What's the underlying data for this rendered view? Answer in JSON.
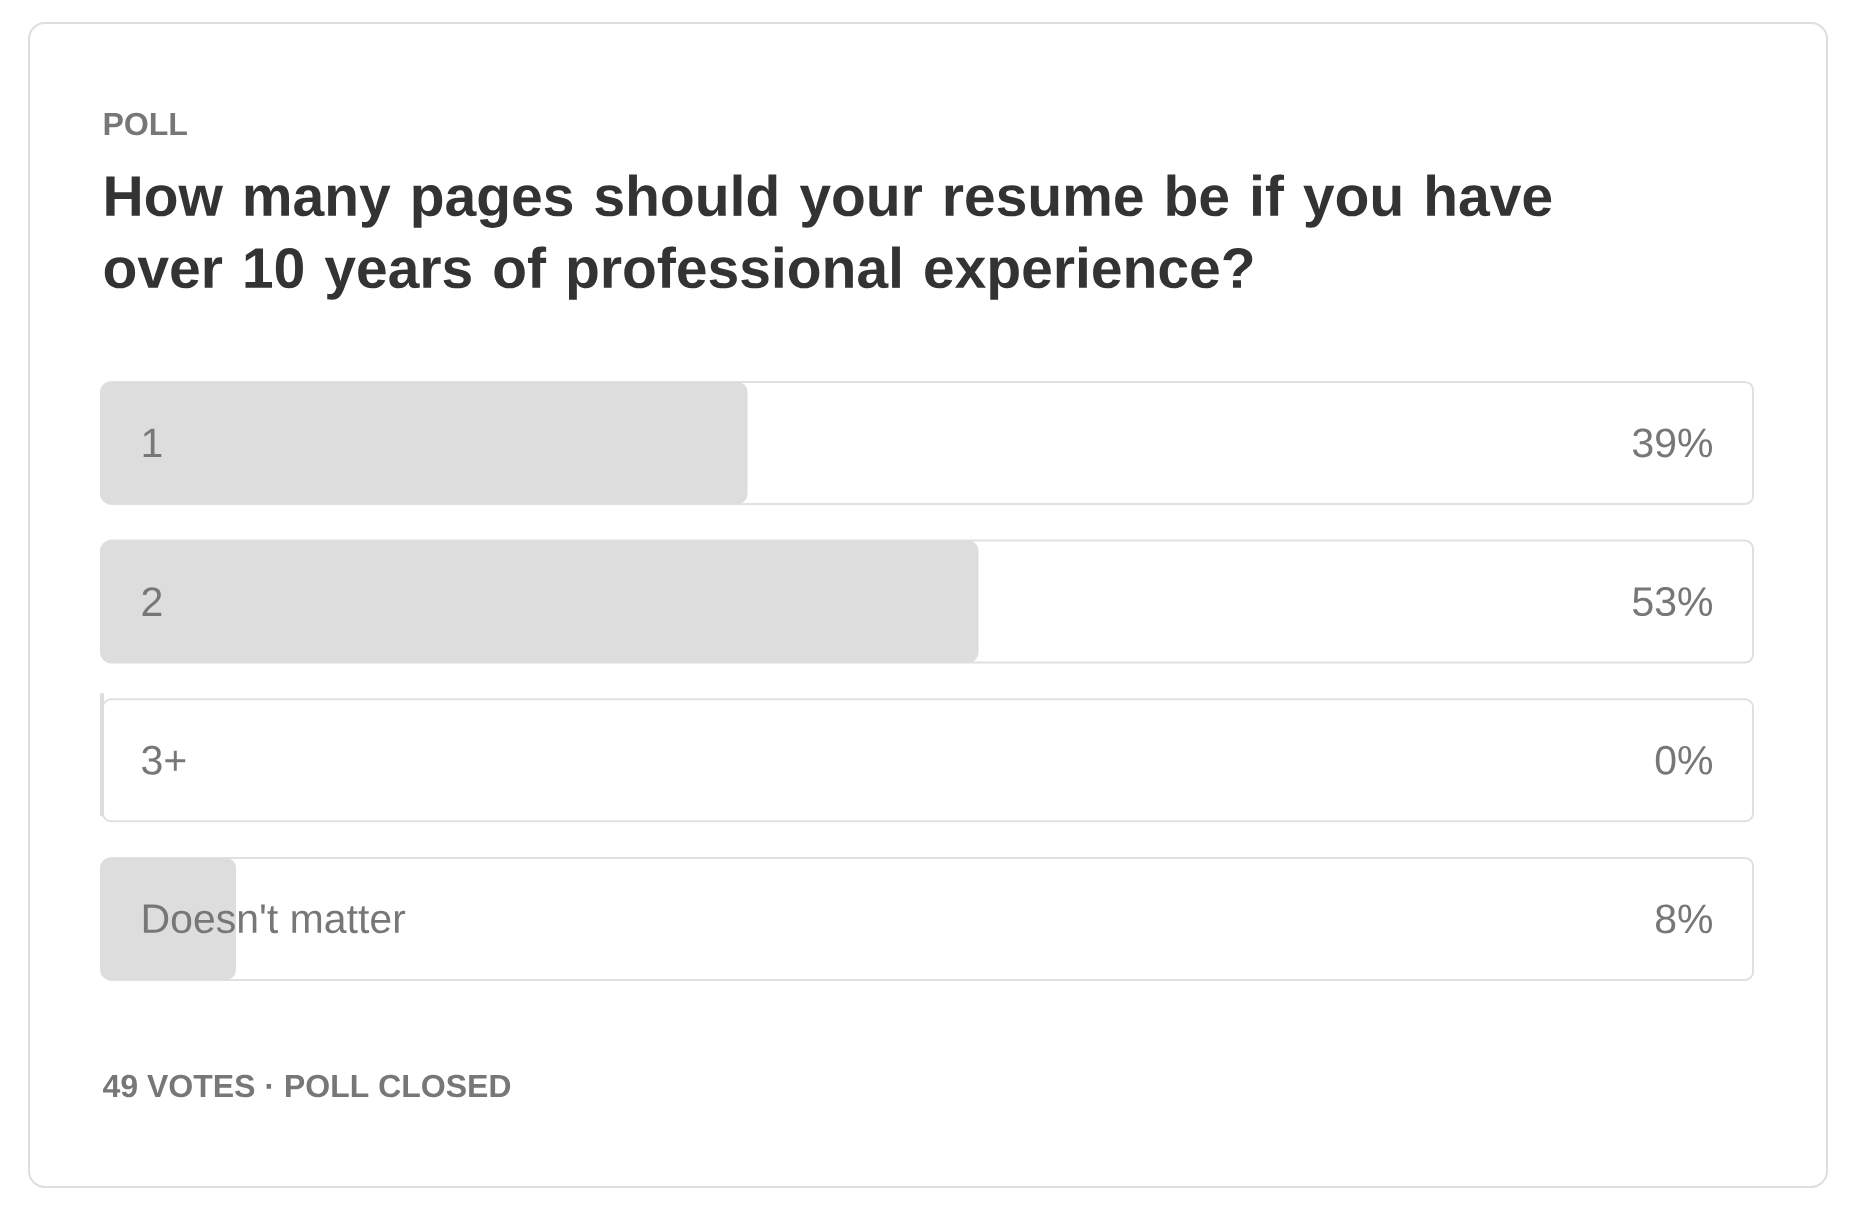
{
  "chart_data": {
    "type": "bar",
    "orientation": "horizontal",
    "title": "How many pages should your resume be if you have over 10 years of professional experience?",
    "annotations": [
      "POLL",
      "49 VOTES · POLL CLOSED"
    ],
    "categories": [
      "1",
      "2",
      "3+",
      "Doesn't matter"
    ],
    "values": [
      39,
      53,
      0,
      8
    ],
    "value_labels": [
      "39%",
      "53%",
      "0%",
      "8%"
    ],
    "color": "#dddddd"
  }
}
